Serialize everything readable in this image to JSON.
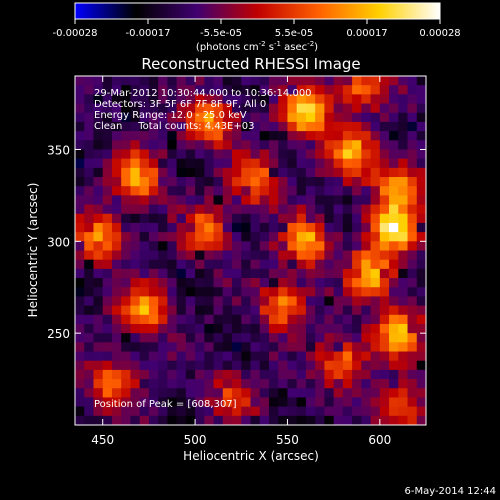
{
  "colorbar": {
    "ticks": [
      "-0.00028",
      "-0.00017",
      "-5.5e-05",
      "5.5e-05",
      "0.00017",
      "0.00028"
    ],
    "units_base": "(photons cm",
    "units_sup1": "-2",
    "units_mid": " s",
    "units_sup2": "-1",
    "units_mid2": " asec",
    "units_sup3": "-2",
    "units_end": ")",
    "stops": [
      "#0000ff",
      "#000000",
      "#400070",
      "#c00000",
      "#ff6000",
      "#ffd000",
      "#ffffff"
    ]
  },
  "chart_data": {
    "type": "heatmap",
    "title": "Reconstructed RHESSI Image",
    "xlabel": "Heliocentric X (arcsec)",
    "ylabel": "Heliocentric Y (arcsec)",
    "xlim": [
      435,
      625
    ],
    "ylim": [
      200,
      390
    ],
    "xticks": [
      450,
      500,
      550,
      600
    ],
    "yticks": [
      250,
      300,
      350
    ],
    "zlim": [
      -0.00028,
      0.00028
    ],
    "peak": [
      608,
      307
    ],
    "annotations": [
      "29-Mar-2012 10:30:44.000 to 10:36:14.000",
      "Detectors: 3F 5F 6F 7F 8F 9F, All 0",
      "Energy Range: 12.0 - 25.0 keV",
      "Clean     Total counts: 4.43E+03"
    ],
    "peak_label": "Position of Peak = [608,307]",
    "bright_sources": [
      {
        "x": 560,
        "y": 370,
        "a": 1.0
      },
      {
        "x": 508,
        "y": 365,
        "a": 0.75
      },
      {
        "x": 470,
        "y": 335,
        "a": 0.8
      },
      {
        "x": 532,
        "y": 333,
        "a": 0.7
      },
      {
        "x": 585,
        "y": 348,
        "a": 0.8
      },
      {
        "x": 610,
        "y": 330,
        "a": 0.75
      },
      {
        "x": 448,
        "y": 302,
        "a": 0.7
      },
      {
        "x": 505,
        "y": 305,
        "a": 0.65
      },
      {
        "x": 560,
        "y": 300,
        "a": 0.8
      },
      {
        "x": 608,
        "y": 307,
        "a": 1.0
      },
      {
        "x": 595,
        "y": 282,
        "a": 0.9
      },
      {
        "x": 472,
        "y": 262,
        "a": 0.8
      },
      {
        "x": 548,
        "y": 265,
        "a": 0.7
      },
      {
        "x": 610,
        "y": 250,
        "a": 0.8
      },
      {
        "x": 580,
        "y": 235,
        "a": 0.65
      },
      {
        "x": 455,
        "y": 222,
        "a": 0.6
      },
      {
        "x": 520,
        "y": 215,
        "a": 0.45
      },
      {
        "x": 612,
        "y": 208,
        "a": 0.6
      },
      {
        "x": 590,
        "y": 385,
        "a": 0.7
      }
    ]
  },
  "footer": {
    "date": "6-May-2014 12:44"
  }
}
